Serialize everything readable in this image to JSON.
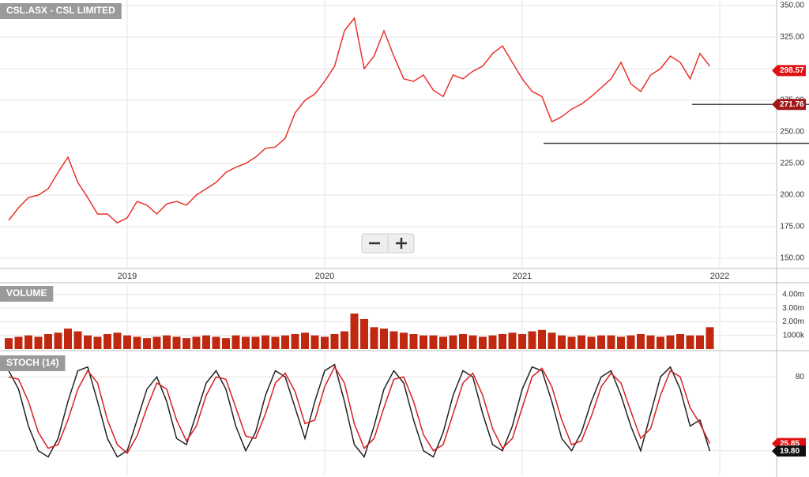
{
  "chart_data": [
    {
      "type": "line",
      "title": "CSL.ASX - CSL LIMITED",
      "x": [
        2018.4,
        2018.45,
        2018.5,
        2018.55,
        2018.6,
        2018.65,
        2018.7,
        2018.75,
        2018.8,
        2018.85,
        2018.9,
        2018.95,
        2019,
        2019.05,
        2019.1,
        2019.15,
        2019.2,
        2019.25,
        2019.3,
        2019.35,
        2019.4,
        2019.45,
        2019.5,
        2019.55,
        2019.6,
        2019.65,
        2019.7,
        2019.75,
        2019.8,
        2019.85,
        2019.9,
        2019.95,
        2020,
        2020.05,
        2020.1,
        2020.15,
        2020.2,
        2020.25,
        2020.3,
        2020.35,
        2020.4,
        2020.45,
        2020.5,
        2020.55,
        2020.6,
        2020.65,
        2020.7,
        2020.75,
        2020.8,
        2020.85,
        2020.9,
        2020.95,
        2021,
        2021.05,
        2021.1,
        2021.15,
        2021.2,
        2021.25,
        2021.3,
        2021.35,
        2021.4,
        2021.45,
        2021.5,
        2021.55,
        2021.6,
        2021.65,
        2021.7,
        2021.75,
        2021.8,
        2021.85,
        2021.9,
        2021.95
      ],
      "series": [
        {
          "color": "#e8322c",
          "values": [
            180,
            190,
            198,
            200,
            205,
            218,
            230,
            210,
            198,
            185,
            185,
            178,
            182,
            195,
            192,
            185,
            193,
            195,
            192,
            200,
            205,
            210,
            218,
            222,
            225,
            230,
            237,
            238,
            245,
            265,
            275,
            280,
            290,
            302,
            330,
            340,
            300,
            310,
            330,
            310,
            292,
            290,
            295,
            283,
            278,
            295,
            292,
            298,
            302,
            312,
            318,
            305,
            292,
            282,
            278,
            258,
            262,
            268,
            272,
            278,
            285,
            292,
            305,
            288,
            282,
            295,
            300,
            310,
            305,
            292,
            312,
            302
          ]
        }
      ],
      "xlim": [
        2018.356,
        2022.288
      ],
      "xticks": [
        2019,
        2020,
        2021,
        2022
      ],
      "ylim": [
        141.9,
        354.4
      ],
      "yticks": [
        {
          "value": 150,
          "label": "150.00"
        },
        {
          "value": 175,
          "label": "175.00"
        },
        {
          "value": 200,
          "label": "200.00"
        },
        {
          "value": 225,
          "label": "225.00"
        },
        {
          "value": 250,
          "label": "250.00"
        },
        {
          "value": 275,
          "label": "275.00"
        },
        {
          "value": 300,
          "label": "300.00"
        },
        {
          "value": 325,
          "label": "325.00"
        },
        {
          "value": 350,
          "label": "350.00"
        }
      ],
      "support_lines": [
        271.76,
        241
      ],
      "price_tags": [
        298.57,
        271.76
      ]
    },
    {
      "type": "bar",
      "title": "VOLUME",
      "color": "#c0280f",
      "x": [
        2018.4,
        2018.45,
        2018.5,
        2018.55,
        2018.6,
        2018.65,
        2018.7,
        2018.75,
        2018.8,
        2018.85,
        2018.9,
        2018.95,
        2019,
        2019.05,
        2019.1,
        2019.15,
        2019.2,
        2019.25,
        2019.3,
        2019.35,
        2019.4,
        2019.45,
        2019.5,
        2019.55,
        2019.6,
        2019.65,
        2019.7,
        2019.75,
        2019.8,
        2019.85,
        2019.9,
        2019.95,
        2020,
        2020.05,
        2020.1,
        2020.15,
        2020.2,
        2020.25,
        2020.3,
        2020.35,
        2020.4,
        2020.45,
        2020.5,
        2020.55,
        2020.6,
        2020.65,
        2020.7,
        2020.75,
        2020.8,
        2020.85,
        2020.9,
        2020.95,
        2021,
        2021.05,
        2021.1,
        2021.15,
        2021.2,
        2021.25,
        2021.3,
        2021.35,
        2021.4,
        2021.45,
        2021.5,
        2021.55,
        2021.6,
        2021.65,
        2021.7,
        2021.75,
        2021.8,
        2021.85,
        2021.9,
        2021.95
      ],
      "values": [
        0.8,
        0.9,
        1.0,
        0.9,
        1.1,
        1.2,
        1.5,
        1.3,
        1.0,
        0.9,
        1.1,
        1.2,
        1.0,
        0.9,
        0.8,
        0.9,
        1.0,
        0.9,
        0.8,
        0.9,
        1.0,
        0.9,
        0.8,
        1.0,
        0.9,
        0.9,
        1.0,
        0.9,
        1.0,
        1.1,
        1.2,
        1.0,
        0.9,
        1.1,
        1.3,
        2.6,
        2.2,
        1.6,
        1.5,
        1.3,
        1.2,
        1.1,
        1.0,
        1.0,
        0.9,
        1.0,
        1.1,
        1.0,
        0.9,
        1.0,
        1.1,
        1.2,
        1.1,
        1.3,
        1.4,
        1.2,
        1.0,
        0.9,
        1.0,
        0.9,
        1.0,
        1.0,
        0.9,
        1.0,
        1.1,
        1.0,
        0.9,
        1.0,
        1.1,
        1.0,
        1.0,
        1.6
      ],
      "xlim": [
        2018.356,
        2022.288
      ],
      "ylim": [
        0,
        4.86
      ],
      "yticks": [
        {
          "value": 1,
          "label": "1000k"
        },
        {
          "value": 2,
          "label": "2.00m"
        },
        {
          "value": 3,
          "label": "3.00m"
        },
        {
          "value": 4,
          "label": "4.00m"
        }
      ]
    },
    {
      "type": "line",
      "title": "STOCH (14)",
      "x": [
        2018.4,
        2018.45,
        2018.5,
        2018.55,
        2018.6,
        2018.65,
        2018.7,
        2018.75,
        2018.8,
        2018.85,
        2018.9,
        2018.95,
        2019,
        2019.05,
        2019.1,
        2019.15,
        2019.2,
        2019.25,
        2019.3,
        2019.35,
        2019.4,
        2019.45,
        2019.5,
        2019.55,
        2019.6,
        2019.65,
        2019.7,
        2019.75,
        2019.8,
        2019.85,
        2019.9,
        2019.95,
        2020,
        2020.05,
        2020.1,
        2020.15,
        2020.2,
        2020.25,
        2020.3,
        2020.35,
        2020.4,
        2020.45,
        2020.5,
        2020.55,
        2020.6,
        2020.65,
        2020.7,
        2020.75,
        2020.8,
        2020.85,
        2020.9,
        2020.95,
        2021,
        2021.05,
        2021.1,
        2021.15,
        2021.2,
        2021.25,
        2021.3,
        2021.35,
        2021.4,
        2021.45,
        2021.5,
        2021.55,
        2021.6,
        2021.65,
        2021.7,
        2021.75,
        2021.8,
        2021.85,
        2021.9,
        2021.95
      ],
      "series": [
        {
          "color": "#222222",
          "values": [
            85,
            70,
            40,
            20,
            15,
            30,
            60,
            85,
            88,
            60,
            30,
            15,
            20,
            45,
            70,
            80,
            60,
            30,
            25,
            50,
            75,
            85,
            70,
            40,
            20,
            35,
            65,
            85,
            80,
            55,
            30,
            60,
            85,
            90,
            60,
            25,
            15,
            40,
            70,
            85,
            75,
            45,
            20,
            15,
            35,
            65,
            85,
            80,
            50,
            25,
            20,
            40,
            70,
            88,
            85,
            60,
            30,
            20,
            35,
            60,
            80,
            85,
            65,
            40,
            20,
            50,
            80,
            88,
            70,
            40,
            45,
            19.8
          ]
        },
        {
          "color": "#d62020",
          "values": [
            80,
            78,
            60,
            35,
            22,
            25,
            45,
            70,
            85,
            75,
            45,
            25,
            18,
            32,
            55,
            75,
            70,
            45,
            28,
            40,
            65,
            80,
            78,
            55,
            32,
            30,
            50,
            75,
            83,
            68,
            42,
            45,
            72,
            88,
            75,
            42,
            22,
            30,
            55,
            78,
            80,
            60,
            33,
            20,
            25,
            50,
            75,
            83,
            65,
            38,
            22,
            30,
            55,
            80,
            87,
            72,
            45,
            25,
            28,
            48,
            72,
            83,
            75,
            52,
            30,
            38,
            65,
            85,
            80,
            55,
            42,
            25.85
          ]
        }
      ],
      "xlim": [
        2018.356,
        2022.288
      ],
      "ylim": [
        0,
        100
      ],
      "yticks": [
        20,
        80
      ],
      "price_tags": [
        25.85,
        {
          "value": 19.8,
          "label": "19.80"
        }
      ]
    }
  ]
}
